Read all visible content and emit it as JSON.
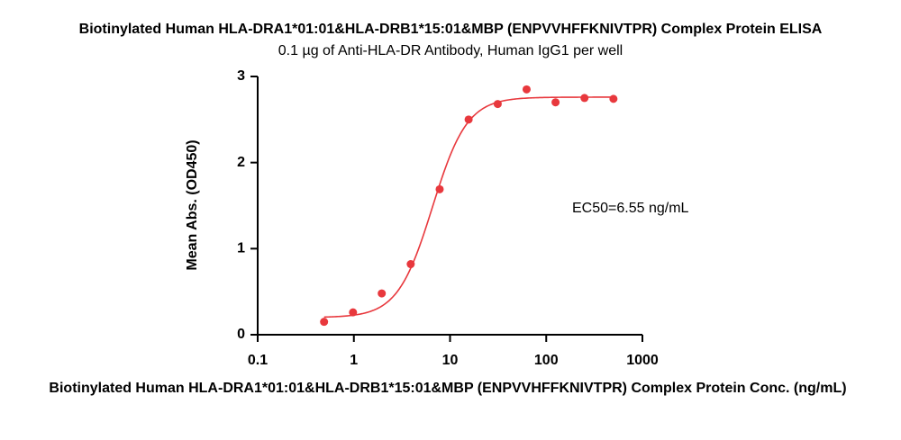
{
  "chart_data": {
    "type": "scatter",
    "title": "Biotinylated Human HLA-DRA1*01:01&HLA-DRB1*15:01&MBP (ENPVVHFFKNIVTPR) Complex Protein ELISA",
    "subtitle": "0.1 µg of Anti-HLA-DR Antibody, Human IgG1 per well",
    "x_label": "Biotinylated Human HLA-DRA1*01:01&HLA-DRB1*15:01&MBP (ENPVVHFFKNIVTPR) Complex Protein Conc. (ng/mL)",
    "y_label": "Mean Abs. (OD450)",
    "annotation": "EC50=6.55 ng/mL",
    "x": [
      0.49,
      0.98,
      1.95,
      3.9,
      7.8,
      15.6,
      31.3,
      62.5,
      125,
      250,
      500
    ],
    "values": [
      0.15,
      0.26,
      0.48,
      0.82,
      1.69,
      2.5,
      2.68,
      2.85,
      2.7,
      2.75,
      2.74
    ],
    "color": "#e8383d",
    "fit": {
      "bottom": 0.2,
      "top": 2.76,
      "ec50": 6.55,
      "hill": 2.4
    },
    "x_log": true,
    "xlim": [
      0.1,
      1000
    ],
    "xticks": [
      0.1,
      1,
      10,
      100,
      1000
    ],
    "ylim": [
      0,
      3
    ],
    "yticks": [
      0,
      1,
      2,
      3
    ],
    "grid": false
  }
}
